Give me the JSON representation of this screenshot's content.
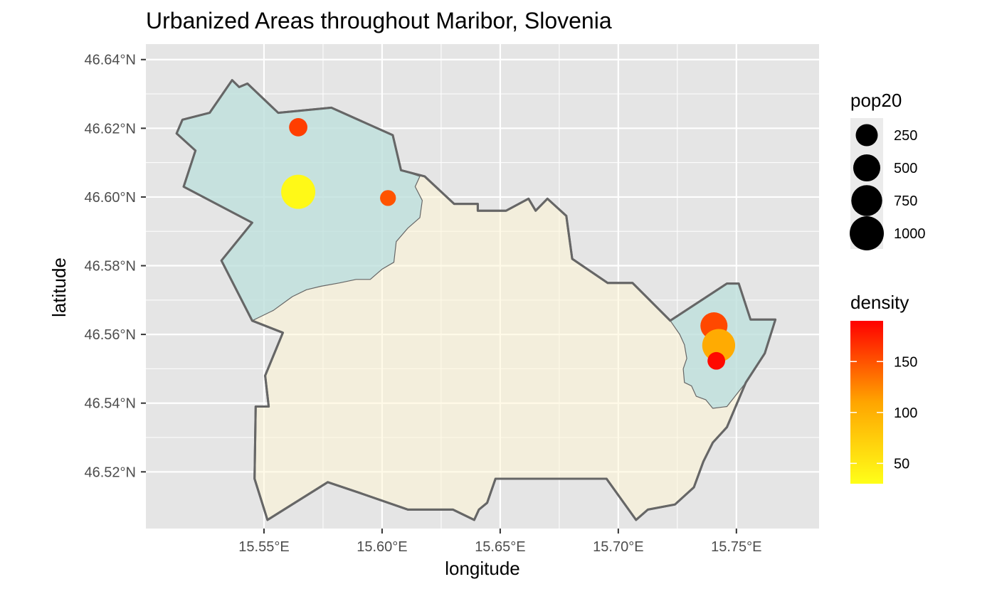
{
  "title": "Urbanized Areas throughout Maribor, Slovenia",
  "chart_data": {
    "type": "map",
    "xlabel": "longitude",
    "ylabel": "latitude",
    "xlim": [
      15.5,
      15.785
    ],
    "ylim": [
      46.5035,
      46.6445
    ],
    "x_ticks": [
      {
        "value": 15.55,
        "label": "15.55°E"
      },
      {
        "value": 15.6,
        "label": "15.60°E"
      },
      {
        "value": 15.65,
        "label": "15.65°E"
      },
      {
        "value": 15.7,
        "label": "15.70°E"
      },
      {
        "value": 15.75,
        "label": "15.75°E"
      }
    ],
    "y_ticks": [
      {
        "value": 46.52,
        "label": "46.52°N"
      },
      {
        "value": 46.54,
        "label": "46.54°N"
      },
      {
        "value": 46.56,
        "label": "46.56°N"
      },
      {
        "value": 46.58,
        "label": "46.58°N"
      },
      {
        "value": 46.6,
        "label": "46.60°N"
      },
      {
        "value": 46.62,
        "label": "46.62°N"
      },
      {
        "value": 46.64,
        "label": "46.64°N"
      }
    ],
    "grid": true,
    "colors": {
      "panel_background": "#e5e5e5",
      "grid": "#ffffff",
      "boundary_fill": "#fff6d6",
      "urban_fill": "#a8d8e0",
      "boundary_stroke": "#666666"
    },
    "regions": [
      {
        "name": "main",
        "fill": "#fff6d6",
        "coords": [
          [
            15.5155,
            46.6225
          ],
          [
            15.527,
            46.6245
          ],
          [
            15.5365,
            46.634
          ],
          [
            15.5395,
            46.632
          ],
          [
            15.543,
            46.633
          ],
          [
            15.556,
            46.6245
          ],
          [
            15.5785,
            46.626
          ],
          [
            15.6045,
            46.618
          ],
          [
            15.608,
            46.6078
          ],
          [
            15.618,
            46.606
          ],
          [
            15.6305,
            46.598
          ],
          [
            15.6405,
            46.598
          ],
          [
            15.6405,
            46.596
          ],
          [
            15.6525,
            46.596
          ],
          [
            15.662,
            46.5995
          ],
          [
            15.665,
            46.596
          ],
          [
            15.67,
            46.5995
          ],
          [
            15.678,
            46.5945
          ],
          [
            15.6805,
            46.582
          ],
          [
            15.6955,
            46.575
          ],
          [
            15.706,
            46.575
          ],
          [
            15.722,
            46.564
          ],
          [
            15.746,
            46.5748
          ],
          [
            15.751,
            46.5748
          ],
          [
            15.756,
            46.5643
          ],
          [
            15.7665,
            46.5643
          ],
          [
            15.762,
            46.5545
          ],
          [
            15.754,
            46.546
          ],
          [
            15.746,
            46.533
          ],
          [
            15.74,
            46.5285
          ],
          [
            15.736,
            46.523
          ],
          [
            15.732,
            46.5155
          ],
          [
            15.724,
            46.5105
          ],
          [
            15.7125,
            46.509
          ],
          [
            15.7075,
            46.506
          ],
          [
            15.695,
            46.518
          ],
          [
            15.648,
            46.518
          ],
          [
            15.6445,
            46.511
          ],
          [
            15.641,
            46.509
          ],
          [
            15.639,
            46.506
          ],
          [
            15.63,
            46.509
          ],
          [
            15.611,
            46.509
          ],
          [
            15.59,
            46.514
          ],
          [
            15.577,
            46.517
          ],
          [
            15.5515,
            46.506
          ],
          [
            15.546,
            46.518
          ],
          [
            15.5465,
            46.539
          ],
          [
            15.552,
            46.539
          ],
          [
            15.5505,
            46.548
          ],
          [
            15.558,
            46.5605
          ],
          [
            15.545,
            46.564
          ],
          [
            15.532,
            46.5815
          ],
          [
            15.545,
            46.5925
          ],
          [
            15.516,
            46.603
          ],
          [
            15.521,
            46.6135
          ],
          [
            15.513,
            46.6185
          ]
        ]
      },
      {
        "name": "urban-northwest",
        "fill": "#a8d8e0",
        "coords": [
          [
            15.5155,
            46.6225
          ],
          [
            15.527,
            46.6245
          ],
          [
            15.5365,
            46.634
          ],
          [
            15.5395,
            46.632
          ],
          [
            15.543,
            46.633
          ],
          [
            15.556,
            46.6245
          ],
          [
            15.5785,
            46.626
          ],
          [
            15.6045,
            46.618
          ],
          [
            15.608,
            46.6078
          ],
          [
            15.616,
            46.606
          ],
          [
            15.614,
            46.603
          ],
          [
            15.617,
            46.599
          ],
          [
            15.616,
            46.594
          ],
          [
            15.611,
            46.591
          ],
          [
            15.606,
            46.587
          ],
          [
            15.605,
            46.581
          ],
          [
            15.6,
            46.579
          ],
          [
            15.595,
            46.576
          ],
          [
            15.589,
            46.576
          ],
          [
            15.582,
            46.575
          ],
          [
            15.574,
            46.574
          ],
          [
            15.568,
            46.573
          ],
          [
            15.562,
            46.571
          ],
          [
            15.558,
            46.569
          ],
          [
            15.554,
            46.567
          ],
          [
            15.548,
            46.565
          ],
          [
            15.545,
            46.564
          ],
          [
            15.532,
            46.5815
          ],
          [
            15.545,
            46.5925
          ],
          [
            15.516,
            46.603
          ],
          [
            15.521,
            46.6135
          ],
          [
            15.513,
            46.6185
          ]
        ]
      },
      {
        "name": "urban-east",
        "fill": "#a8d8e0",
        "coords": [
          [
            15.722,
            46.564
          ],
          [
            15.746,
            46.5748
          ],
          [
            15.751,
            46.5748
          ],
          [
            15.756,
            46.5643
          ],
          [
            15.7665,
            46.5643
          ],
          [
            15.762,
            46.5545
          ],
          [
            15.754,
            46.546
          ],
          [
            15.746,
            46.539
          ],
          [
            15.74,
            46.5385
          ],
          [
            15.737,
            46.541
          ],
          [
            15.733,
            46.542
          ],
          [
            15.731,
            46.545
          ],
          [
            15.728,
            46.546
          ],
          [
            15.7275,
            46.55
          ],
          [
            15.729,
            46.553
          ],
          [
            15.728,
            46.557
          ],
          [
            15.726,
            46.56
          ]
        ]
      }
    ],
    "points": [
      {
        "lon": 15.5645,
        "lat": 46.6203,
        "pop20": 120,
        "density": 160
      },
      {
        "lon": 15.5645,
        "lat": 46.6015,
        "pop20": 1000,
        "density": 35
      },
      {
        "lon": 15.6025,
        "lat": 46.5997,
        "pop20": 60,
        "density": 150
      },
      {
        "lon": 15.7405,
        "lat": 46.5625,
        "pop20": 500,
        "density": 155
      },
      {
        "lon": 15.7425,
        "lat": 46.5568,
        "pop20": 900,
        "density": 105
      },
      {
        "lon": 15.7415,
        "lat": 46.5523,
        "pop20": 100,
        "density": 185
      }
    ],
    "size_legend": {
      "title": "pop20",
      "entries": [
        {
          "value": 250,
          "label": "250"
        },
        {
          "value": 500,
          "label": "500"
        },
        {
          "value": 750,
          "label": "750"
        },
        {
          "value": 1000,
          "label": "1000"
        }
      ]
    },
    "color_legend": {
      "title": "density",
      "range": [
        30,
        190
      ],
      "low_color": "#ffff19",
      "mid_color": "#ffa500",
      "high_color": "#ff0000",
      "ticks": [
        {
          "value": 50,
          "label": "50"
        },
        {
          "value": 100,
          "label": "100"
        },
        {
          "value": 150,
          "label": "150"
        }
      ]
    }
  }
}
